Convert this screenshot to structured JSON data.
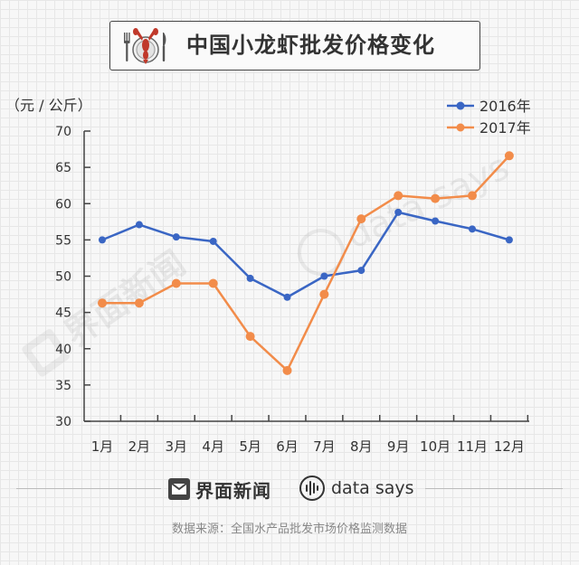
{
  "title": "中国小龙虾批发价格变化",
  "brand": {
    "name": "界面新闻",
    "partner": "data says"
  },
  "source_note": "数据来源：全国水产品批发市场价格监测数据",
  "watermark": {
    "left": "界面新闻",
    "right": "data says"
  },
  "colors": {
    "series_2016": "#3a66c4",
    "series_2017": "#f28c4a",
    "axis": "#444"
  },
  "chart_data": {
    "type": "line",
    "ylabel": "（元 / 公斤）",
    "xlabel": "",
    "categories": [
      "1月",
      "2月",
      "3月",
      "4月",
      "5月",
      "6月",
      "7月",
      "8月",
      "9月",
      "10月",
      "11月",
      "12月"
    ],
    "ylim": [
      30,
      70
    ],
    "yticks": [
      30,
      35,
      40,
      45,
      50,
      55,
      60,
      65,
      70
    ],
    "grid": false,
    "legend": "top-right",
    "series": [
      {
        "name": "2016年",
        "values": [
          55.0,
          57.1,
          55.4,
          54.8,
          49.7,
          47.1,
          50.0,
          50.8,
          58.8,
          57.6,
          56.5,
          55.0
        ]
      },
      {
        "name": "2017年",
        "values": [
          46.3,
          46.3,
          49.0,
          49.0,
          41.7,
          37.0,
          47.5,
          57.9,
          61.1,
          60.7,
          61.1,
          66.6
        ]
      }
    ]
  }
}
